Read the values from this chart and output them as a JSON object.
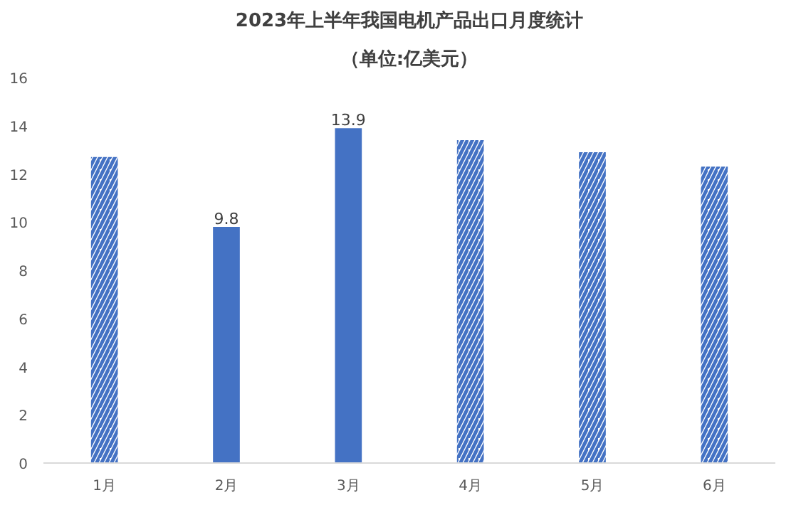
{
  "chart_data": {
    "type": "bar",
    "title": "2023年上半年我国电机产品出口月度统计",
    "subtitle": "（单位:亿美元）",
    "categories": [
      "1月",
      "2月",
      "3月",
      "4月",
      "5月",
      "6月"
    ],
    "values": [
      12.7,
      9.8,
      13.9,
      13.4,
      12.9,
      12.3
    ],
    "value_labels": [
      null,
      "9.8",
      "13.9",
      null,
      null,
      null
    ],
    "color": "#4472c4",
    "ylim": [
      0,
      16
    ],
    "yticks": [
      0,
      2,
      4,
      6,
      8,
      10,
      12,
      14,
      16
    ],
    "grid": false
  }
}
